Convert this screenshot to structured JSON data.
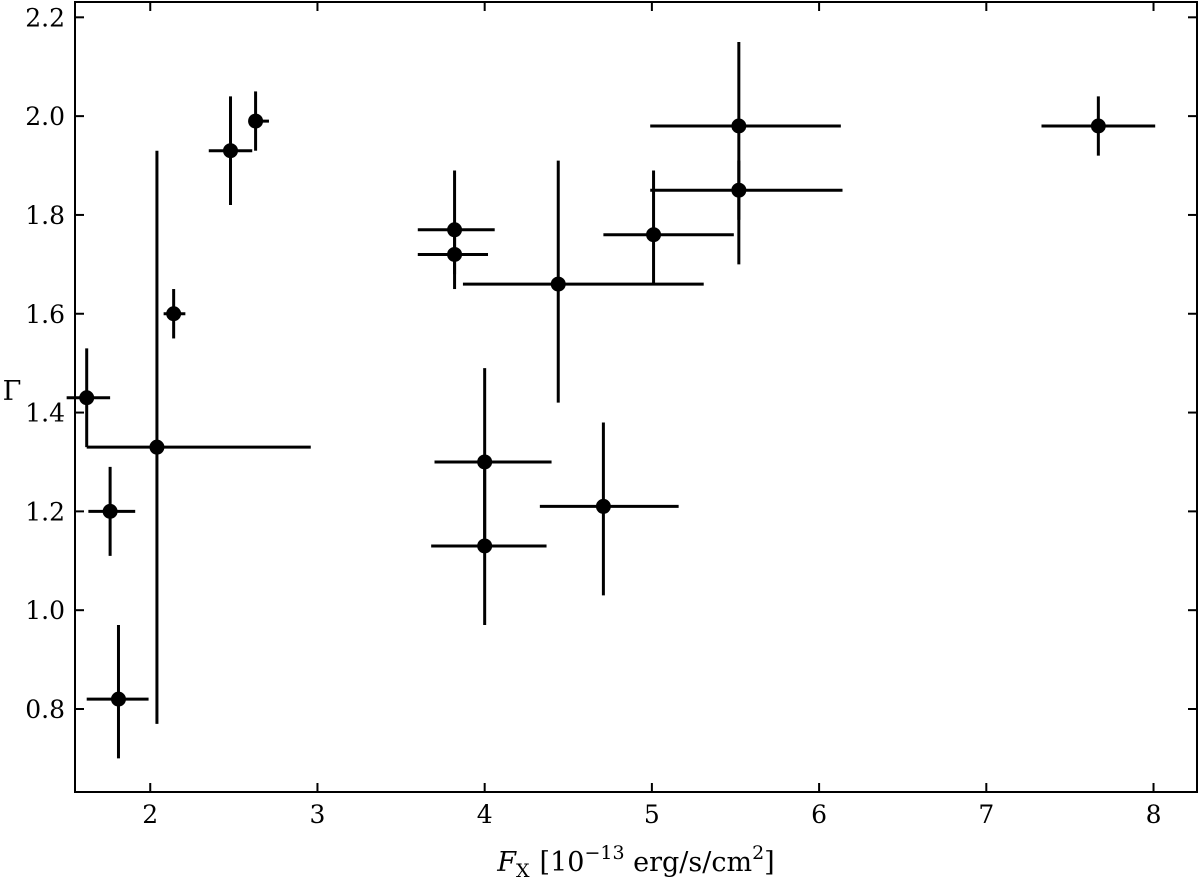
{
  "chart_data": {
    "type": "scatter",
    "xlabel_parts": {
      "symbol": "F",
      "symbol_sub": "X",
      "bracket_open": "[10",
      "exponent": "−13",
      "unit": " erg/s/cm",
      "unit_sup": "2",
      "bracket_close": "]"
    },
    "ylabel": "Γ",
    "xlim": [
      1.55,
      8.26
    ],
    "ylim": [
      0.632,
      2.231
    ],
    "xticks": [
      2,
      3,
      4,
      5,
      6,
      7,
      8
    ],
    "xtick_labels": [
      "2",
      "3",
      "4",
      "5",
      "6",
      "7",
      "8"
    ],
    "yticks": [
      0.8,
      1.0,
      1.2,
      1.4,
      1.6,
      1.8,
      2.0,
      2.2
    ],
    "ytick_labels": [
      "0.8",
      "1.0",
      "1.2",
      "1.4",
      "1.6",
      "1.8",
      "2.0",
      "2.2"
    ],
    "grid": false,
    "tick_direction": "in",
    "points": [
      {
        "x": 1.62,
        "y": 1.43,
        "xerr": [
          0.12,
          0.14
        ],
        "yerr": [
          0.1,
          0.1
        ]
      },
      {
        "x": 1.76,
        "y": 1.2,
        "xerr": [
          0.13,
          0.15
        ],
        "yerr": [
          0.09,
          0.09
        ]
      },
      {
        "x": 1.81,
        "y": 0.82,
        "xerr": [
          0.19,
          0.18
        ],
        "yerr": [
          0.12,
          0.15
        ]
      },
      {
        "x": 2.04,
        "y": 1.33,
        "xerr": [
          0.42,
          0.92
        ],
        "yerr": [
          0.56,
          0.6
        ]
      },
      {
        "x": 2.14,
        "y": 1.6,
        "xerr": [
          0.06,
          0.07
        ],
        "yerr": [
          0.05,
          0.05
        ]
      },
      {
        "x": 2.48,
        "y": 1.93,
        "xerr": [
          0.13,
          0.13
        ],
        "yerr": [
          0.11,
          0.11
        ]
      },
      {
        "x": 2.63,
        "y": 1.99,
        "xerr": [
          0.04,
          0.08
        ],
        "yerr": [
          0.06,
          0.06
        ]
      },
      {
        "x": 3.82,
        "y": 1.77,
        "xerr": [
          0.22,
          0.24
        ],
        "yerr": [
          0.09,
          0.12
        ]
      },
      {
        "x": 3.82,
        "y": 1.72,
        "xerr": [
          0.22,
          0.2
        ],
        "yerr": [
          0.07,
          0.04
        ]
      },
      {
        "x": 4.0,
        "y": 1.3,
        "xerr": [
          0.3,
          0.4
        ],
        "yerr": [
          0.17,
          0.19
        ]
      },
      {
        "x": 4.0,
        "y": 1.13,
        "xerr": [
          0.32,
          0.37
        ],
        "yerr": [
          0.16,
          0.17
        ]
      },
      {
        "x": 4.44,
        "y": 1.66,
        "xerr": [
          0.57,
          0.87
        ],
        "yerr": [
          0.24,
          0.25
        ]
      },
      {
        "x": 4.71,
        "y": 1.21,
        "xerr": [
          0.38,
          0.45
        ],
        "yerr": [
          0.18,
          0.17
        ]
      },
      {
        "x": 5.01,
        "y": 1.76,
        "xerr": [
          0.3,
          0.48
        ],
        "yerr": [
          0.1,
          0.13
        ]
      },
      {
        "x": 5.52,
        "y": 1.98,
        "xerr": [
          0.53,
          0.61
        ],
        "yerr": [
          0.19,
          0.17
        ]
      },
      {
        "x": 5.52,
        "y": 1.85,
        "xerr": [
          0.53,
          0.62
        ],
        "yerr": [
          0.15,
          0.06
        ]
      },
      {
        "x": 7.67,
        "y": 1.98,
        "xerr": [
          0.34,
          0.34
        ],
        "yerr": [
          0.06,
          0.06
        ]
      }
    ]
  }
}
